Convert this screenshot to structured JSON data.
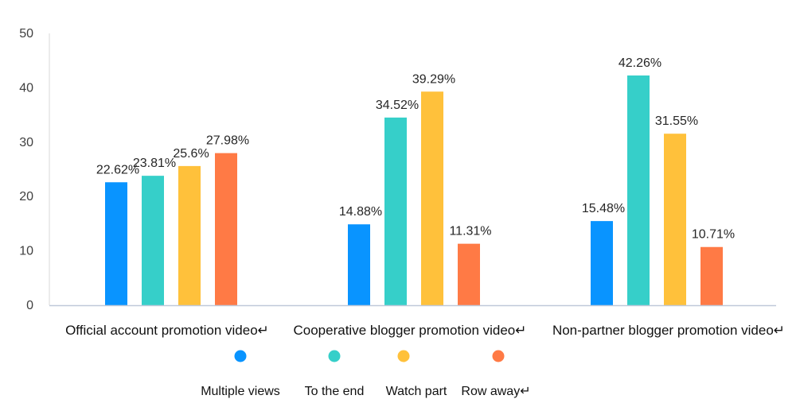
{
  "chart_data": {
    "type": "bar",
    "categories": [
      "Official account promotion video↵",
      "Cooperative blogger promotion video↵",
      "Non-partner blogger promotion video↵"
    ],
    "series": [
      {
        "name": "Multiple views",
        "color": "#0994ff",
        "values": [
          22.62,
          14.88,
          15.48
        ],
        "labels": [
          "22.62%",
          "14.88%",
          "15.48%"
        ]
      },
      {
        "name": "To the end",
        "color": "#36cfc9",
        "values": [
          23.81,
          34.52,
          42.26
        ],
        "labels": [
          "23.81%",
          "34.52%",
          "42.26%"
        ]
      },
      {
        "name": "Watch part",
        "color": "#ffc13b",
        "values": [
          25.6,
          39.29,
          31.55
        ],
        "labels": [
          "25.6%",
          "39.29%",
          "31.55%"
        ]
      },
      {
        "name": "Row away↵",
        "color": "#ff7a45",
        "values": [
          27.98,
          11.31,
          10.71
        ],
        "labels": [
          "27.98%",
          "11.31%",
          "10.71%"
        ]
      }
    ],
    "ylim": [
      0,
      50
    ],
    "yticks": [
      0,
      10,
      20,
      30,
      40,
      50
    ],
    "title": "",
    "xlabel": "",
    "ylabel": "",
    "grid": false,
    "legend": "bottom"
  }
}
